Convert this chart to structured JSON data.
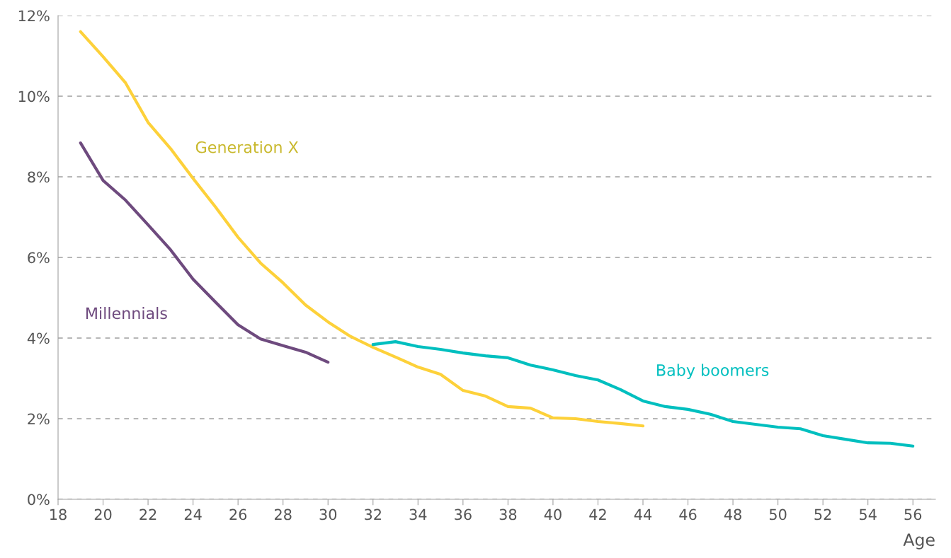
{
  "chart_data": {
    "type": "line",
    "xlabel": "Age",
    "xlim": [
      18,
      57
    ],
    "xticks": [
      18,
      20,
      22,
      24,
      26,
      28,
      30,
      32,
      34,
      36,
      38,
      40,
      42,
      44,
      46,
      48,
      50,
      52,
      54,
      56
    ],
    "ylim": [
      0,
      12
    ],
    "yticks": [
      {
        "value": 0,
        "label": "0%"
      },
      {
        "value": 2,
        "label": "2%"
      },
      {
        "value": 4,
        "label": "4%"
      },
      {
        "value": 6,
        "label": "6%"
      },
      {
        "value": 8,
        "label": "8%"
      },
      {
        "value": 10,
        "label": "10%"
      },
      {
        "value": 12,
        "label": "12%"
      }
    ],
    "grid": "y",
    "legend": false,
    "marker": "none",
    "line_style": "solid",
    "series": [
      {
        "name": "Generation X",
        "color": "#fdd13a",
        "x": [
          19,
          20,
          21,
          22,
          23,
          24,
          25,
          26,
          27,
          28,
          29,
          30,
          31,
          32,
          33,
          34,
          35,
          36,
          37,
          38,
          39,
          40,
          41,
          42,
          43,
          44
        ],
        "values": [
          11.6,
          10.98,
          10.33,
          9.35,
          8.7,
          7.96,
          7.25,
          6.5,
          5.86,
          5.37,
          4.82,
          4.4,
          4.04,
          3.77,
          3.53,
          3.28,
          3.1,
          2.7,
          2.56,
          2.3,
          2.26,
          2.02,
          2.0,
          1.93,
          1.88,
          1.82
        ]
      },
      {
        "name": "Millennials",
        "color": "#6e4a7e",
        "x": [
          19,
          20,
          21,
          22,
          23,
          24,
          25,
          26,
          27,
          28,
          29,
          30
        ],
        "values": [
          8.84,
          7.91,
          7.42,
          6.81,
          6.19,
          5.46,
          4.89,
          4.33,
          3.98,
          3.81,
          3.65,
          3.4
        ]
      },
      {
        "name": "Baby boomers",
        "color": "#00bfbf",
        "x": [
          32,
          33,
          34,
          35,
          36,
          37,
          38,
          39,
          40,
          41,
          42,
          43,
          44,
          45,
          46,
          47,
          48,
          49,
          50,
          51,
          52,
          53,
          54,
          55,
          56
        ],
        "values": [
          3.84,
          3.91,
          3.79,
          3.72,
          3.63,
          3.56,
          3.51,
          3.33,
          3.21,
          3.07,
          2.96,
          2.72,
          2.44,
          2.3,
          2.23,
          2.11,
          1.93,
          1.86,
          1.79,
          1.75,
          1.58,
          1.49,
          1.4,
          1.39,
          1.32
        ]
      }
    ]
  }
}
